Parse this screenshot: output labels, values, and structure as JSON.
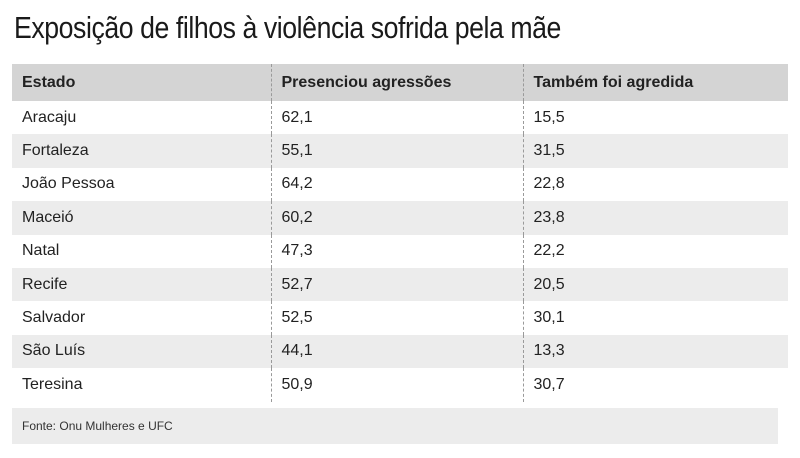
{
  "title": "Exposição de filhos à violência sofrida pela mãe",
  "source": "Fonte: Onu Mulheres e UFC",
  "chart_data": {
    "type": "table",
    "columns": [
      "Estado",
      "Presenciou agressões",
      "Também foi agredida"
    ],
    "rows": [
      [
        "Aracaju",
        "62,1",
        "15,5"
      ],
      [
        "Fortaleza",
        "55,1",
        "31,5"
      ],
      [
        "João Pessoa",
        "64,2",
        "22,8"
      ],
      [
        "Maceió",
        "60,2",
        "23,8"
      ],
      [
        "Natal",
        "47,3",
        "22,2"
      ],
      [
        "Recife",
        "52,7",
        "20,5"
      ],
      [
        "Salvador",
        "52,5",
        "30,1"
      ],
      [
        "São Luís",
        "44,1",
        "13,3"
      ],
      [
        "Teresina",
        "50,9",
        "30,7"
      ]
    ]
  }
}
